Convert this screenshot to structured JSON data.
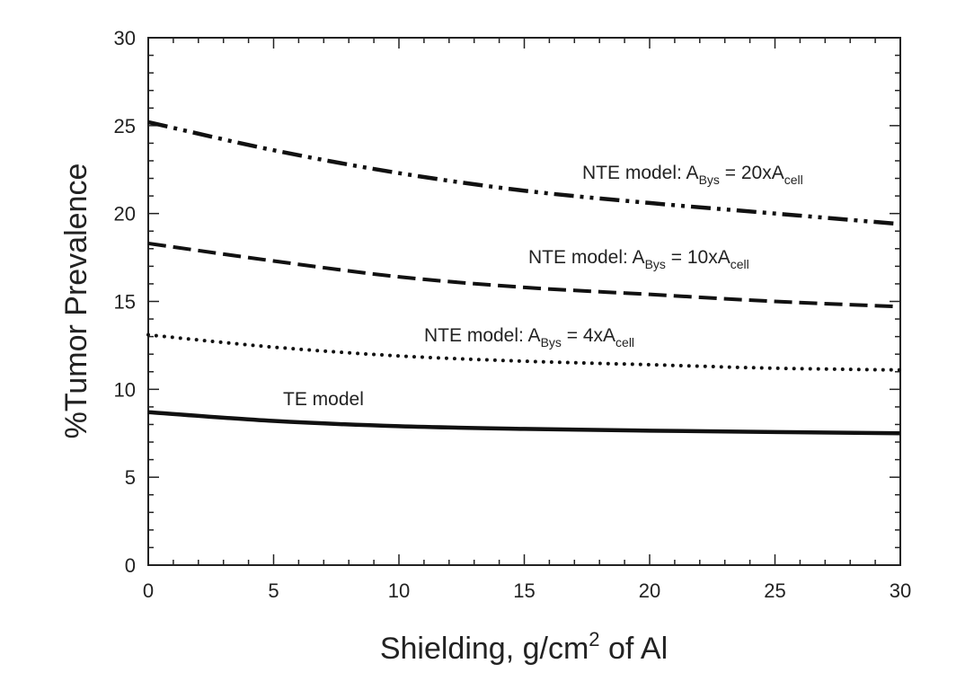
{
  "chart_data": {
    "type": "line",
    "title": "",
    "xlabel": "Shielding, g/cm",
    "xlabel_sup": "2",
    "xlabel_suffix": " of Al",
    "ylabel": "%Tumor Prevalence",
    "xlim": [
      0,
      30
    ],
    "ylim": [
      0,
      30
    ],
    "xticks": [
      0,
      5,
      10,
      15,
      20,
      25,
      30
    ],
    "yticks": [
      0,
      5,
      10,
      15,
      20,
      25,
      30
    ],
    "xtick_labels": [
      "0",
      "5",
      "10",
      "15",
      "20",
      "25",
      "30"
    ],
    "ytick_labels": [
      "0",
      "5",
      "10",
      "15",
      "20",
      "25",
      "30"
    ],
    "grid": false,
    "x": [
      0,
      5,
      10,
      15,
      20,
      25,
      30
    ],
    "series": [
      {
        "name": "NTE model: ABys = 20xAcell",
        "style": "dash-dot-dot",
        "values": [
          25.2,
          23.6,
          22.3,
          21.3,
          20.6,
          20.0,
          19.4
        ],
        "label": {
          "main": "NTE model: A",
          "sub1": "Bys",
          "mid": " = 20xA",
          "sub2": "cell"
        }
      },
      {
        "name": "NTE model: ABys = 10xAcell",
        "style": "dashed",
        "values": [
          18.3,
          17.3,
          16.4,
          15.8,
          15.4,
          15.0,
          14.7
        ],
        "label": {
          "main": "NTE model: A",
          "sub1": "Bys",
          "mid": " = 10xA",
          "sub2": "cell"
        }
      },
      {
        "name": "NTE model: ABys = 4xAcell",
        "style": "dotted",
        "values": [
          13.1,
          12.4,
          11.9,
          11.6,
          11.4,
          11.2,
          11.1
        ],
        "label": {
          "main": "NTE model: A",
          "sub1": "Bys",
          "mid": " = 4xA",
          "sub2": "cell"
        }
      },
      {
        "name": "TE model",
        "style": "solid",
        "values": [
          8.7,
          8.2,
          7.9,
          7.75,
          7.65,
          7.57,
          7.5
        ],
        "label": {
          "main": "TE model",
          "sub1": "",
          "mid": "",
          "sub2": ""
        }
      }
    ]
  }
}
